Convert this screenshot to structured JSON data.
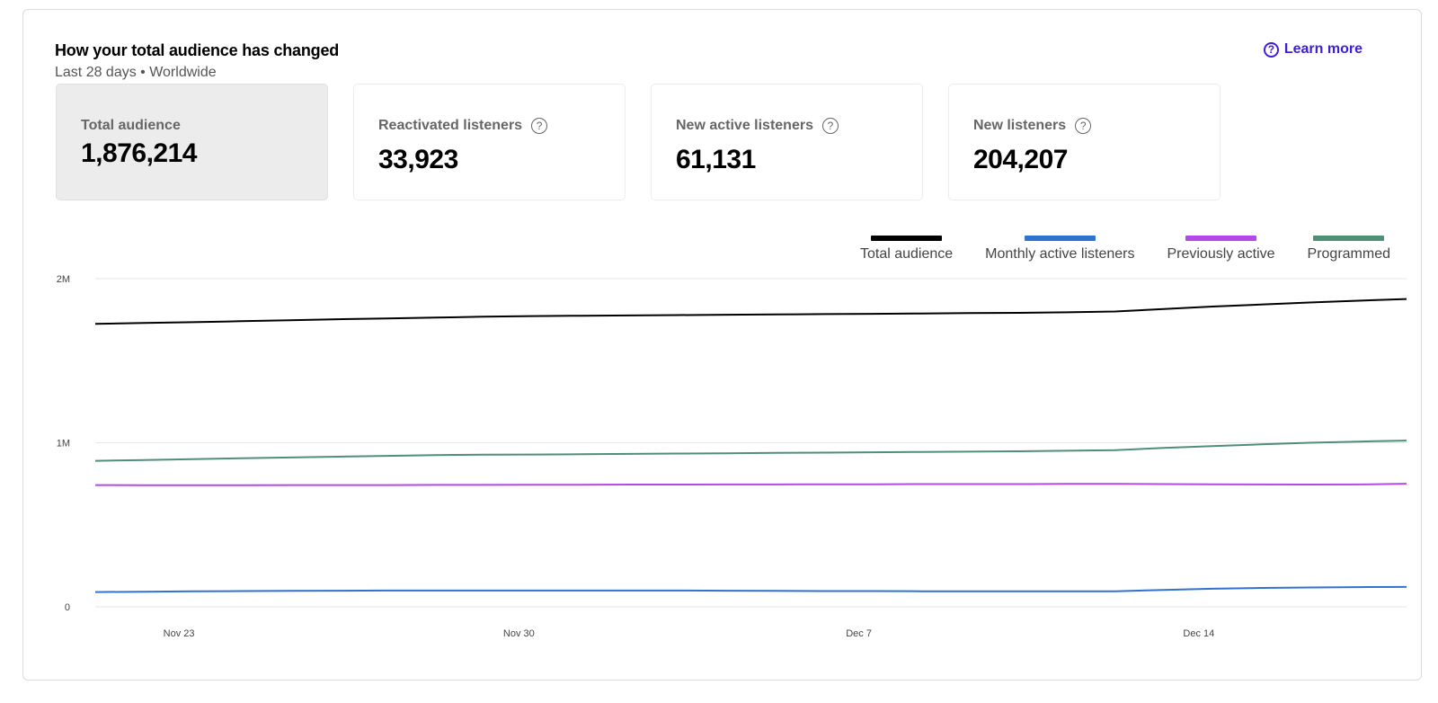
{
  "header": {
    "title": "How your total audience has changed",
    "subtitle": "Last 28 days • Worldwide",
    "learn_more": "Learn more",
    "help_icon": "question-circle-icon"
  },
  "stats": [
    {
      "label": "Total audience",
      "value": "1,876,214",
      "selected": true,
      "help": false
    },
    {
      "label": "Reactivated listeners",
      "value": "33,923",
      "selected": false,
      "help": true
    },
    {
      "label": "New active listeners",
      "value": "61,131",
      "selected": false,
      "help": true
    },
    {
      "label": "New listeners",
      "value": "204,207",
      "selected": false,
      "help": true
    }
  ],
  "colors": {
    "accent": "#3d1fd9",
    "total": "#000000",
    "monthly": "#2f72d0",
    "previous": "#b548e8",
    "programmed": "#4e8f76"
  },
  "chart_data": {
    "type": "line",
    "title": "",
    "xlabel": "",
    "ylabel": "",
    "ylim": [
      0,
      2000000
    ],
    "yticks": [
      0,
      1000000,
      2000000
    ],
    "ytick_labels": [
      "0",
      "1M",
      "2M"
    ],
    "x": [
      "Nov 21",
      "Nov 22",
      "Nov 23",
      "Nov 24",
      "Nov 25",
      "Nov 26",
      "Nov 27",
      "Nov 28",
      "Nov 29",
      "Nov 30",
      "Dec 1",
      "Dec 2",
      "Dec 3",
      "Dec 4",
      "Dec 5",
      "Dec 6",
      "Dec 7",
      "Dec 8",
      "Dec 9",
      "Dec 10",
      "Dec 11",
      "Dec 12",
      "Dec 13",
      "Dec 14",
      "Dec 15",
      "Dec 16",
      "Dec 17",
      "Dec 18"
    ],
    "xtick_labels": [
      "Nov 23",
      "Nov 30",
      "Dec 7",
      "Dec 14"
    ],
    "xtick_positions": [
      2,
      9,
      16,
      23
    ],
    "grid": true,
    "legend_position": "top-right",
    "series": [
      {
        "name": "Total audience",
        "color": "#000000",
        "values": [
          1725000,
          1730000,
          1735000,
          1741000,
          1747000,
          1753000,
          1758000,
          1763000,
          1768000,
          1772000,
          1774000,
          1776000,
          1778000,
          1780000,
          1782000,
          1784000,
          1786000,
          1788000,
          1790000,
          1792000,
          1795000,
          1800000,
          1815000,
          1830000,
          1842000,
          1855000,
          1866000,
          1876214
        ]
      },
      {
        "name": "Monthly active listeners",
        "color": "#2f72d0",
        "values": [
          90000,
          92000,
          94000,
          96000,
          97000,
          98000,
          99000,
          99000,
          99000,
          99000,
          99000,
          99000,
          99000,
          98000,
          97000,
          96000,
          96000,
          95000,
          95000,
          95000,
          94000,
          95000,
          103000,
          110000,
          115000,
          118000,
          120000,
          121000
        ]
      },
      {
        "name": "Previously active",
        "color": "#b548e8",
        "values": [
          742000,
          741000,
          741000,
          741000,
          742000,
          742000,
          742000,
          743000,
          743000,
          744000,
          744000,
          745000,
          745000,
          746000,
          746000,
          747000,
          747000,
          748000,
          748000,
          748000,
          749000,
          749000,
          748000,
          747000,
          746000,
          745000,
          746000,
          750000
        ]
      },
      {
        "name": "Programmed",
        "color": "#4e8f76",
        "values": [
          890000,
          895000,
          900000,
          905000,
          910000,
          915000,
          920000,
          925000,
          927000,
          928000,
          930000,
          932000,
          934000,
          936000,
          938000,
          940000,
          942000,
          944000,
          946000,
          948000,
          951000,
          955000,
          968000,
          980000,
          990000,
          1000000,
          1007000,
          1013000
        ]
      }
    ]
  }
}
